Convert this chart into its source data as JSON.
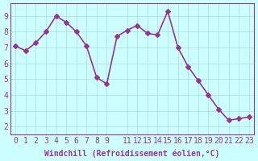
{
  "x": [
    0,
    1,
    2,
    3,
    4,
    5,
    6,
    7,
    8,
    9,
    10,
    11,
    12,
    13,
    14,
    15,
    16,
    17,
    18,
    19,
    20,
    21,
    22,
    23
  ],
  "y": [
    7.1,
    6.8,
    7.3,
    8.0,
    9.0,
    8.6,
    8.0,
    7.1,
    5.1,
    4.7,
    7.7,
    8.1,
    8.4,
    7.9,
    7.8,
    9.3,
    7.0,
    5.8,
    4.9,
    4.0,
    3.1,
    2.4,
    2.5,
    2.6
  ],
  "line_color": "#993399",
  "marker": "D",
  "marker_size": 3,
  "linewidth": 1.2,
  "bg_color": "#ccffff",
  "grid_color": "#aadddd",
  "xlabel": "Windchill (Refroidissement éolien,°C)",
  "xlabel_color": "#993399",
  "tick_color": "#993399",
  "xlim": [
    -0.5,
    23.5
  ],
  "ylim": [
    1.5,
    9.8
  ],
  "yticks": [
    2,
    3,
    4,
    5,
    6,
    7,
    8,
    9
  ],
  "xticks": [
    0,
    1,
    2,
    3,
    4,
    5,
    6,
    7,
    8,
    9,
    11,
    12,
    13,
    14,
    15,
    16,
    17,
    18,
    19,
    20,
    21,
    22,
    23
  ],
  "xtick_labels": [
    "0",
    "1",
    "2",
    "3",
    "4",
    "5",
    "6",
    "7",
    "8",
    "9",
    "11",
    "12",
    "13",
    "14",
    "15",
    "16",
    "17",
    "18",
    "19",
    "20",
    "21",
    "22",
    "23"
  ],
  "title": "",
  "font_size": 7
}
